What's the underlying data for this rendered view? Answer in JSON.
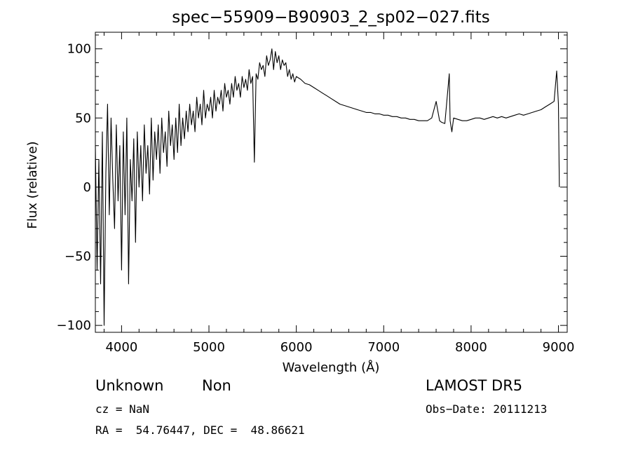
{
  "chart_data": {
    "type": "line",
    "title": "spec−55909−B90903_2_sp02−027.fits",
    "xlabel": "Wavelength (Å)",
    "ylabel": "Flux (relative)",
    "xlim": [
      3700,
      9100
    ],
    "ylim": [
      -105,
      112
    ],
    "xticks": [
      4000,
      5000,
      6000,
      7000,
      8000,
      9000
    ],
    "xtick_labels": [
      "4000",
      "5000",
      "6000",
      "7000",
      "8000",
      "9000"
    ],
    "yticks": [
      -100,
      -50,
      0,
      50,
      100
    ],
    "ytick_labels": [
      "−100",
      "−50",
      "0",
      "50",
      "100"
    ],
    "grid": false,
    "series": [
      {
        "x": [
          3700,
          3720,
          3740,
          3760,
          3780,
          3800,
          3820,
          3840,
          3860,
          3880,
          3900,
          3920,
          3940,
          3960,
          3980,
          4000,
          4020,
          4040,
          4060,
          4080,
          4100,
          4120,
          4140,
          4160,
          4180,
          4200,
          4220,
          4240,
          4260,
          4280,
          4300,
          4320,
          4340,
          4360,
          4380,
          4400,
          4420,
          4440,
          4460,
          4480,
          4500,
          4520,
          4540,
          4560,
          4580,
          4600,
          4620,
          4640,
          4660,
          4680,
          4700,
          4720,
          4740,
          4760,
          4780,
          4800,
          4820,
          4840,
          4860,
          4880,
          4900,
          4920,
          4940,
          4960,
          4980,
          5000,
          5020,
          5040,
          5060,
          5080,
          5100,
          5120,
          5140,
          5160,
          5180,
          5200,
          5220,
          5240,
          5260,
          5280,
          5300,
          5320,
          5340,
          5360,
          5380,
          5400,
          5420,
          5440,
          5460,
          5480,
          5500,
          5520,
          5540,
          5560,
          5580,
          5600,
          5620,
          5640,
          5660,
          5680,
          5700,
          5720,
          5740,
          5760,
          5780,
          5800,
          5820,
          5840,
          5860,
          5880,
          5900,
          5920,
          5940,
          5960,
          5980,
          6000,
          6050,
          6100,
          6150,
          6200,
          6250,
          6300,
          6350,
          6400,
          6450,
          6500,
          6550,
          6600,
          6650,
          6700,
          6750,
          6800,
          6850,
          6900,
          6950,
          7000,
          7050,
          7100,
          7150,
          7200,
          7250,
          7300,
          7350,
          7400,
          7450,
          7500,
          7550,
          7600,
          7620,
          7640,
          7660,
          7700,
          7750,
          7760,
          7780,
          7800,
          7850,
          7900,
          7950,
          8000,
          8050,
          8100,
          8150,
          8200,
          8250,
          8300,
          8350,
          8400,
          8450,
          8500,
          8550,
          8600,
          8650,
          8700,
          8750,
          8800,
          8850,
          8900,
          8950,
          8980,
          9000,
          9010
        ],
        "y": [
          30,
          -60,
          20,
          -70,
          40,
          -100,
          10,
          60,
          -20,
          50,
          5,
          -30,
          45,
          -10,
          30,
          -60,
          40,
          -20,
          50,
          -70,
          20,
          -10,
          35,
          -40,
          40,
          0,
          30,
          -10,
          45,
          10,
          30,
          -5,
          50,
          5,
          40,
          20,
          45,
          10,
          50,
          25,
          40,
          15,
          55,
          30,
          45,
          20,
          50,
          25,
          60,
          30,
          50,
          35,
          55,
          40,
          60,
          45,
          55,
          40,
          65,
          50,
          60,
          45,
          70,
          50,
          60,
          55,
          65,
          50,
          70,
          55,
          65,
          60,
          70,
          55,
          75,
          65,
          70,
          60,
          75,
          65,
          80,
          70,
          75,
          65,
          80,
          72,
          78,
          70,
          85,
          75,
          80,
          18,
          82,
          78,
          90,
          85,
          88,
          80,
          95,
          88,
          92,
          100,
          85,
          98,
          90,
          95,
          85,
          92,
          88,
          90,
          80,
          85,
          78,
          82,
          76,
          80,
          78,
          75,
          74,
          72,
          70,
          68,
          66,
          64,
          62,
          60,
          59,
          58,
          57,
          56,
          55,
          54,
          54,
          53,
          53,
          52,
          52,
          51,
          51,
          50,
          50,
          49,
          49,
          48,
          48,
          48,
          50,
          62,
          55,
          48,
          47,
          46,
          82,
          48,
          40,
          50,
          49,
          48,
          48,
          49,
          50,
          50,
          49,
          50,
          51,
          50,
          51,
          50,
          51,
          52,
          53,
          52,
          53,
          54,
          55,
          56,
          58,
          60,
          62,
          84,
          60,
          0
        ]
      }
    ]
  },
  "footer": {
    "object_class": "Unknown",
    "subclass": "Non",
    "cz": "cz = NaN",
    "coords": "RA =  54.76447, DEC =  48.86621",
    "survey": "LAMOST DR5",
    "obs_date": "Obs−Date: 20111213"
  }
}
